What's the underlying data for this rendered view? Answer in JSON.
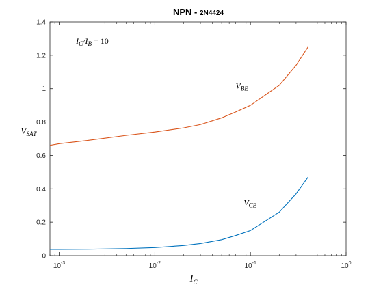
{
  "chart_data": {
    "type": "line",
    "title": {
      "main": "NPN - ",
      "part_small": "2N",
      "part_num": "4424"
    },
    "xlabel": {
      "base": "I",
      "sub": "C"
    },
    "ylabel": {
      "base": "V",
      "sub": "SAT"
    },
    "xscale": "log",
    "xlim": [
      0.0008,
      1
    ],
    "ylim": [
      0,
      1.4
    ],
    "grid": false,
    "xticks": [
      {
        "value": 0.001,
        "base": "10",
        "exp": "-3"
      },
      {
        "value": 0.01,
        "base": "10",
        "exp": "-2"
      },
      {
        "value": 0.1,
        "base": "10",
        "exp": "-1"
      },
      {
        "value": 1,
        "base": "10",
        "exp": "0"
      }
    ],
    "yticks": [
      {
        "value": 0,
        "label": "0"
      },
      {
        "value": 0.2,
        "label": "0.2"
      },
      {
        "value": 0.4,
        "label": "0.4"
      },
      {
        "value": 0.6,
        "label": "0.6"
      },
      {
        "value": 0.8,
        "label": "0.8"
      },
      {
        "value": 1.0,
        "label": "1"
      },
      {
        "value": 1.2,
        "label": "1.2"
      },
      {
        "value": 1.4,
        "label": "1.4"
      }
    ],
    "annotations": [
      {
        "base": "I",
        "sub": "C",
        "mid": "/I",
        "sub2": "B",
        "rest": " = 10"
      }
    ],
    "series": [
      {
        "name": {
          "base": "V",
          "sub": "BE"
        },
        "color": "#d95319",
        "x": [
          0.0008,
          0.001,
          0.002,
          0.005,
          0.01,
          0.02,
          0.03,
          0.05,
          0.07,
          0.1,
          0.2,
          0.3,
          0.4
        ],
        "y": [
          0.66,
          0.67,
          0.69,
          0.72,
          0.74,
          0.765,
          0.785,
          0.825,
          0.86,
          0.9,
          1.02,
          1.14,
          1.25
        ]
      },
      {
        "name": {
          "base": "V",
          "sub": "CE"
        },
        "color": "#0072bd",
        "x": [
          0.0008,
          0.001,
          0.002,
          0.005,
          0.01,
          0.02,
          0.03,
          0.05,
          0.07,
          0.1,
          0.2,
          0.3,
          0.4
        ],
        "y": [
          0.037,
          0.037,
          0.038,
          0.042,
          0.048,
          0.06,
          0.072,
          0.095,
          0.12,
          0.15,
          0.26,
          0.37,
          0.47
        ]
      }
    ],
    "label_positions": [
      {
        "series": 0,
        "x": 0.07,
        "y": 1.0
      },
      {
        "series": 1,
        "x": 0.085,
        "y": 0.3
      }
    ],
    "annotation_position": {
      "x": 0.0015,
      "y": 1.27
    }
  }
}
